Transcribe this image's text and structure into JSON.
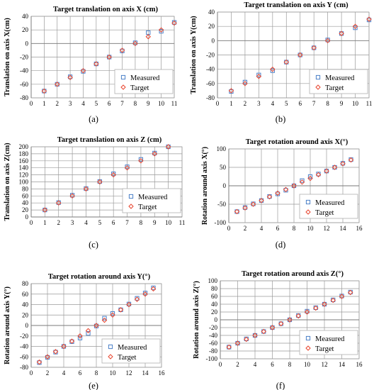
{
  "colors": {
    "measured": "#4a7fc7",
    "target": "#e8452f",
    "grid": "#9a9a9a"
  },
  "markers": {
    "measured": "square",
    "target": "diamond"
  },
  "chart_data": [
    {
      "id": "a",
      "type": "scatter",
      "caption": "(a)",
      "title": "Target translation on axis X (cm)",
      "xlabel": "",
      "ylabel": "Translation on  axis X(cm)",
      "xlim": [
        0,
        11
      ],
      "xticks": [
        0,
        1,
        2,
        3,
        4,
        5,
        6,
        7,
        8,
        9,
        10,
        11
      ],
      "ylim": [
        -80,
        40
      ],
      "yticks": [
        -80,
        -60,
        -40,
        -20,
        0,
        20,
        40
      ],
      "grid": true,
      "legend_position": "bottom-right",
      "series": [
        {
          "name": "Measured",
          "marker": "square",
          "x": [
            1,
            2,
            3,
            4,
            5,
            6,
            7,
            8,
            9,
            10,
            11
          ],
          "y": [
            -70,
            -60,
            -49,
            -41,
            -30,
            -20,
            -11,
            1,
            16,
            18,
            31
          ]
        },
        {
          "name": "Target",
          "marker": "diamond",
          "x": [
            1,
            2,
            3,
            4,
            5,
            6,
            7,
            8,
            9,
            10,
            11
          ],
          "y": [
            -70,
            -60,
            -50,
            -40,
            -30,
            -20,
            -10,
            0,
            10,
            20,
            30
          ]
        }
      ]
    },
    {
      "id": "b",
      "type": "scatter",
      "caption": "(b)",
      "title": "Target translation on axis Y (cm)",
      "xlabel": "",
      "ylabel": "Translation on  axis Y(cm)",
      "xlim": [
        0,
        11
      ],
      "xticks": [
        0,
        1,
        2,
        3,
        4,
        5,
        6,
        7,
        8,
        9,
        10,
        11
      ],
      "ylim": [
        -80,
        40
      ],
      "yticks": [
        -80,
        -60,
        -40,
        -20,
        0,
        20,
        40
      ],
      "grid": true,
      "legend_position": "bottom-right",
      "series": [
        {
          "name": "Measured",
          "marker": "square",
          "x": [
            1,
            2,
            3,
            4,
            5,
            6,
            7,
            8,
            9,
            10,
            11
          ],
          "y": [
            -71,
            -58,
            -48,
            -42,
            -30,
            -20,
            -10,
            1,
            10,
            18,
            29
          ]
        },
        {
          "name": "Target",
          "marker": "diamond",
          "x": [
            1,
            2,
            3,
            4,
            5,
            6,
            7,
            8,
            9,
            10,
            11
          ],
          "y": [
            -70,
            -60,
            -50,
            -40,
            -30,
            -20,
            -10,
            0,
            10,
            20,
            30
          ]
        }
      ]
    },
    {
      "id": "c",
      "type": "scatter",
      "caption": "(c)",
      "title": "Target translation on axis Z (cm)",
      "xlabel": "",
      "ylabel": "Translation on  axis Z(cm)",
      "xlim": [
        0,
        11
      ],
      "xticks": [
        0,
        1,
        2,
        3,
        4,
        5,
        6,
        7,
        8,
        9,
        10,
        11
      ],
      "ylim": [
        0,
        200
      ],
      "yticks": [
        0,
        20,
        40,
        60,
        80,
        100,
        120,
        140,
        160,
        180,
        200
      ],
      "grid": true,
      "legend_position": "bottom-right",
      "series": [
        {
          "name": "Measured",
          "marker": "square",
          "x": [
            1,
            2,
            3,
            4,
            5,
            6,
            7,
            8,
            9,
            10
          ],
          "y": [
            20,
            41,
            62,
            81,
            101,
            123,
            143,
            164,
            182,
            200
          ]
        },
        {
          "name": "Target",
          "marker": "diamond",
          "x": [
            1,
            2,
            3,
            4,
            5,
            6,
            7,
            8,
            9,
            10
          ],
          "y": [
            20,
            40,
            60,
            80,
            100,
            120,
            140,
            160,
            180,
            200
          ]
        }
      ]
    },
    {
      "id": "d",
      "type": "scatter",
      "caption": "(d)",
      "title": "Target rotation around axis X(°)",
      "xlabel": "",
      "ylabel": "Rotation around axis X(°)",
      "xlim": [
        0,
        16
      ],
      "xticks": [
        0,
        2,
        4,
        6,
        8,
        10,
        12,
        14,
        16
      ],
      "ylim": [
        -100,
        100
      ],
      "yticks": [
        -100,
        -50,
        0,
        50,
        100
      ],
      "grid": true,
      "legend_position": "bottom-right",
      "series": [
        {
          "name": "Measured",
          "marker": "square",
          "x": [
            1,
            2,
            3,
            4,
            5,
            6,
            7,
            8,
            9,
            10,
            11,
            12,
            13,
            14,
            15
          ],
          "y": [
            -70,
            -59,
            -49,
            -40,
            -29,
            -22,
            -12,
            0,
            14,
            25,
            32,
            40,
            50,
            61,
            71
          ]
        },
        {
          "name": "Target",
          "marker": "diamond",
          "x": [
            1,
            2,
            3,
            4,
            5,
            6,
            7,
            8,
            9,
            10,
            11,
            12,
            13,
            14,
            15
          ],
          "y": [
            -70,
            -60,
            -50,
            -40,
            -30,
            -20,
            -10,
            0,
            10,
            20,
            30,
            40,
            50,
            60,
            70
          ]
        }
      ]
    },
    {
      "id": "e",
      "type": "scatter",
      "caption": "(e)",
      "title": "Target rotation around axis Y(°)",
      "xlabel": "",
      "ylabel": "Rotation around axis Y(°)",
      "xlim": [
        0,
        16
      ],
      "xticks": [
        0,
        2,
        4,
        6,
        8,
        10,
        12,
        14,
        16
      ],
      "ylim": [
        -80,
        80
      ],
      "yticks": [
        -80,
        -60,
        -40,
        -20,
        0,
        20,
        40,
        60,
        80
      ],
      "grid": true,
      "legend_position": "bottom-right",
      "series": [
        {
          "name": "Measured",
          "marker": "square",
          "x": [
            1,
            2,
            3,
            4,
            5,
            6,
            7,
            8,
            9,
            10,
            11,
            12,
            13,
            14,
            15
          ],
          "y": [
            -71,
            -61,
            -51,
            -40,
            -31,
            -24,
            -15,
            -1,
            14,
            23,
            30,
            41,
            52,
            62,
            72
          ]
        },
        {
          "name": "Target",
          "marker": "diamond",
          "x": [
            1,
            2,
            3,
            4,
            5,
            6,
            7,
            8,
            9,
            10,
            11,
            12,
            13,
            14,
            15
          ],
          "y": [
            -70,
            -60,
            -50,
            -40,
            -30,
            -20,
            -10,
            0,
            10,
            20,
            30,
            40,
            50,
            60,
            70
          ]
        }
      ]
    },
    {
      "id": "f",
      "type": "scatter",
      "caption": "(f)",
      "title": "Target rotation around axis Z(°)",
      "xlabel": "",
      "ylabel": "Rotation around axis Z(°)",
      "xlim": [
        0,
        16
      ],
      "xticks": [
        0,
        2,
        4,
        6,
        8,
        10,
        12,
        14,
        16
      ],
      "ylim": [
        -100,
        100
      ],
      "yticks": [
        -100,
        -80,
        -60,
        -40,
        -20,
        0,
        20,
        40,
        60,
        80,
        100
      ],
      "grid": true,
      "legend_position": "bottom-right",
      "series": [
        {
          "name": "Measured",
          "marker": "square",
          "x": [
            1,
            2,
            3,
            4,
            5,
            6,
            7,
            8,
            9,
            10,
            11,
            12,
            13,
            14,
            15
          ],
          "y": [
            -70,
            -60,
            -49,
            -40,
            -30,
            -20,
            -10,
            0,
            11,
            22,
            31,
            40,
            51,
            61,
            71
          ]
        },
        {
          "name": "Target",
          "marker": "diamond",
          "x": [
            1,
            2,
            3,
            4,
            5,
            6,
            7,
            8,
            9,
            10,
            11,
            12,
            13,
            14,
            15
          ],
          "y": [
            -70,
            -60,
            -50,
            -40,
            -30,
            -20,
            -10,
            0,
            10,
            20,
            30,
            40,
            50,
            60,
            70
          ]
        }
      ]
    }
  ]
}
